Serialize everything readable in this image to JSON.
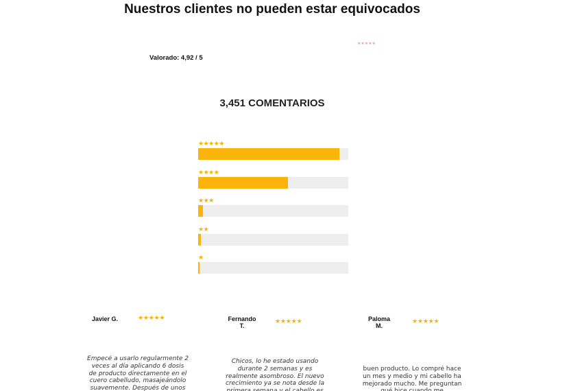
{
  "heading": "Nuestros clientes no pueden estar equivocados",
  "rating_summary": {
    "label": "Valorado: 4,92 / 5",
    "mini_stars": "★★★★★"
  },
  "reviews_count_label": "3,451 COMENTARIOS",
  "rating_bars": [
    {
      "stars": "★★★★★",
      "fill_percent": 94
    },
    {
      "stars": "★★★★",
      "fill_percent": 60
    },
    {
      "stars": "★★★",
      "fill_percent": 3
    },
    {
      "stars": "★★",
      "fill_percent": 2
    },
    {
      "stars": "★",
      "fill_percent": 1
    }
  ],
  "reviews": [
    {
      "name": "Javier G.",
      "stars": "★★★★★",
      "text": "Empecé a usarlo regularmente 2 veces al día aplicando 6 dosis de producto directamente en el cuero cabelludo, masajeándolo suavemente. Después de unos"
    },
    {
      "name": "Fernando T.",
      "stars": "★★★★★",
      "text": "Chicos, lo he estado usando durante 2 semanas y es realmente asombroso. El nuevo crecimiento ya se nota desde la primera semana y el cabello es"
    },
    {
      "name": "Paloma M.",
      "stars": "★★★★★",
      "text": "buen producto. Lo compré hace un mes y medio y mi cabello ha mejorado mucho. Me preguntan qué hice cuando me"
    }
  ],
  "colors": {
    "star": "#f5b300",
    "bar_fill": "#fbb40c",
    "bar_track": "#eeeeee"
  }
}
